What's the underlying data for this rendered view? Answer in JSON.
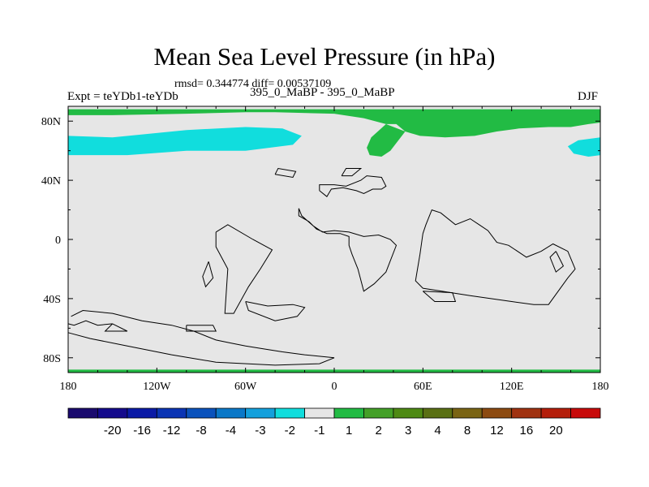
{
  "title": "Mean Sea Level Pressure (in hPa)",
  "stats": "rmsd= 0.344774 diff= 0.00537109",
  "expt_label": "Expt = teYDb1-teYDb",
  "runs_label": "395_0_MaBP - 395_0_MaBP",
  "season_label": "DJF",
  "colors": {
    "background_fill": "#e6e6e6",
    "positive_fill": "#22bb44",
    "negative_fill": "#11dddd",
    "coastline": "#000000"
  },
  "chart_data": {
    "type": "heatmap",
    "title": "Mean Sea Level Pressure (in hPa)",
    "xlim": [
      -180,
      180
    ],
    "ylim": [
      -90,
      90
    ],
    "x_ticks": [
      {
        "value": -180,
        "label": "180"
      },
      {
        "value": -120,
        "label": "120W"
      },
      {
        "value": -60,
        "label": "60W"
      },
      {
        "value": 0,
        "label": "0"
      },
      {
        "value": 60,
        "label": "60E"
      },
      {
        "value": 120,
        "label": "120E"
      },
      {
        "value": 180,
        "label": "180"
      }
    ],
    "y_ticks": [
      {
        "value": 80,
        "label": "80N"
      },
      {
        "value": 40,
        "label": "40N"
      },
      {
        "value": 0,
        "label": "0"
      },
      {
        "value": -40,
        "label": "40S"
      },
      {
        "value": -80,
        "label": "80S"
      }
    ],
    "colorbar": {
      "colors": [
        "#1a0a6e",
        "#140a8c",
        "#0a1aa6",
        "#0a34b4",
        "#0a52bc",
        "#0a78c8",
        "#14a0dc",
        "#11dddd",
        "#e6e6e6",
        "#22bb44",
        "#44a028",
        "#4e8a14",
        "#5a7014",
        "#7a6414",
        "#8c4a10",
        "#a03210",
        "#b41e0a",
        "#c80a0a"
      ],
      "labels": [
        "-20",
        "-16",
        "-12",
        "-8",
        "-4",
        "-3",
        "-2",
        "-1",
        "1",
        "2",
        "3",
        "4",
        "8",
        "12",
        "16",
        "20"
      ]
    },
    "regions": [
      {
        "value_range": "1 to 2",
        "color": "#22bb44",
        "points": [
          [
            -180,
            88
          ],
          [
            -180,
            84
          ],
          [
            -150,
            84
          ],
          [
            -100,
            85
          ],
          [
            -60,
            86
          ],
          [
            -40,
            86
          ],
          [
            0,
            85
          ],
          [
            20,
            82
          ],
          [
            35,
            78
          ],
          [
            42,
            78
          ],
          [
            48,
            73
          ],
          [
            58,
            70
          ],
          [
            75,
            69
          ],
          [
            95,
            70
          ],
          [
            110,
            73
          ],
          [
            125,
            75
          ],
          [
            145,
            76
          ],
          [
            160,
            76
          ],
          [
            172,
            78
          ],
          [
            180,
            79
          ],
          [
            180,
            88
          ]
        ]
      },
      {
        "value_range": "1 to 2",
        "color": "#22bb44",
        "points": [
          [
            35,
            78
          ],
          [
            25,
            69
          ],
          [
            22,
            62
          ],
          [
            24,
            57
          ],
          [
            32,
            56
          ],
          [
            38,
            60
          ],
          [
            48,
            73
          ]
        ]
      },
      {
        "value_range": "1 to 2",
        "color": "#22bb44",
        "points": [
          [
            -180,
            -88
          ],
          [
            180,
            -88
          ],
          [
            180,
            -90
          ],
          [
            -180,
            -90
          ]
        ]
      },
      {
        "value_range": "-2 to -1",
        "color": "#11dddd",
        "points": [
          [
            -180,
            70
          ],
          [
            -150,
            69
          ],
          [
            -100,
            74
          ],
          [
            -60,
            76
          ],
          [
            -35,
            75
          ],
          [
            -22,
            70
          ],
          [
            -28,
            64
          ],
          [
            -60,
            60
          ],
          [
            -100,
            60
          ],
          [
            -140,
            57
          ],
          [
            -180,
            57
          ]
        ]
      },
      {
        "value_range": "-2 to -1",
        "color": "#11dddd",
        "points": [
          [
            180,
            69
          ],
          [
            165,
            67
          ],
          [
            158,
            63
          ],
          [
            162,
            58
          ],
          [
            172,
            56
          ],
          [
            180,
            57
          ]
        ]
      }
    ],
    "coastlines": [
      [
        [
          -10,
          33
        ],
        [
          -10,
          37
        ],
        [
          0,
          37
        ],
        [
          8,
          36
        ],
        [
          18,
          40
        ],
        [
          22,
          43
        ],
        [
          32,
          42
        ],
        [
          35,
          36
        ],
        [
          32,
          34
        ],
        [
          26,
          34
        ],
        [
          20,
          31
        ],
        [
          15,
          33
        ],
        [
          6,
          35
        ],
        [
          -2,
          34
        ],
        [
          -5,
          29
        ],
        [
          -10,
          33
        ]
      ],
      [
        [
          -24,
          21
        ],
        [
          -24,
          16
        ],
        [
          -17,
          12
        ],
        [
          -12,
          7
        ],
        [
          -5,
          4
        ],
        [
          4,
          4
        ],
        [
          10,
          2
        ],
        [
          10,
          -4
        ],
        [
          12,
          -10
        ],
        [
          16,
          -20
        ],
        [
          20,
          -35
        ],
        [
          27,
          -30
        ],
        [
          35,
          -22
        ],
        [
          42,
          -4
        ],
        [
          38,
          0
        ],
        [
          30,
          3
        ],
        [
          20,
          2
        ],
        [
          10,
          5
        ],
        [
          0,
          6
        ],
        [
          -8,
          5
        ],
        [
          -14,
          9
        ],
        [
          -22,
          16
        ],
        [
          -24,
          21
        ]
      ],
      [
        [
          -80,
          5
        ],
        [
          -72,
          10
        ],
        [
          -55,
          0
        ],
        [
          -42,
          -7
        ],
        [
          -50,
          -20
        ],
        [
          -58,
          -32
        ],
        [
          -68,
          -50
        ],
        [
          -74,
          -50
        ],
        [
          -72,
          -20
        ],
        [
          -80,
          -5
        ],
        [
          -80,
          5
        ]
      ],
      [
        [
          -85,
          -15
        ],
        [
          -89,
          -25
        ],
        [
          -87,
          -32
        ],
        [
          -82,
          -26
        ],
        [
          -85,
          -15
        ]
      ],
      [
        [
          60,
          4
        ],
        [
          58,
          -10
        ],
        [
          55,
          -28
        ],
        [
          60,
          -33
        ],
        [
          92,
          -38
        ],
        [
          120,
          -42
        ],
        [
          135,
          -44
        ],
        [
          145,
          -44
        ],
        [
          158,
          -26
        ],
        [
          163,
          -20
        ],
        [
          158,
          -8
        ],
        [
          148,
          -3
        ],
        [
          140,
          -8
        ],
        [
          130,
          -12
        ],
        [
          118,
          -4
        ],
        [
          110,
          -2
        ],
        [
          104,
          6
        ],
        [
          98,
          10
        ],
        [
          92,
          14
        ],
        [
          82,
          10
        ],
        [
          72,
          18
        ],
        [
          66,
          20
        ],
        [
          62,
          10
        ],
        [
          60,
          4
        ]
      ],
      [
        [
          -178,
          -52
        ],
        [
          -170,
          -48
        ],
        [
          -150,
          -50
        ],
        [
          -130,
          -55
        ],
        [
          -110,
          -58
        ],
        [
          -95,
          -62
        ],
        [
          -80,
          -68
        ],
        [
          -70,
          -70
        ],
        [
          -60,
          -72
        ],
        [
          -48,
          -74
        ],
        [
          -35,
          -76
        ],
        [
          -20,
          -78
        ],
        [
          0,
          -80
        ],
        [
          -10,
          -84
        ],
        [
          -40,
          -85
        ],
        [
          -80,
          -83
        ],
        [
          -110,
          -78
        ],
        [
          -140,
          -72
        ],
        [
          -165,
          -67
        ],
        [
          -180,
          -63
        ]
      ],
      [
        [
          -60,
          -42
        ],
        [
          -58,
          -48
        ],
        [
          -40,
          -55
        ],
        [
          -25,
          -52
        ],
        [
          -20,
          -46
        ],
        [
          -28,
          -44
        ],
        [
          -45,
          -45
        ],
        [
          -60,
          -42
        ]
      ],
      [
        [
          -100,
          -58
        ],
        [
          -100,
          -62
        ],
        [
          -80,
          -62
        ],
        [
          -82,
          -58
        ],
        [
          -100,
          -58
        ]
      ],
      [
        [
          -40,
          44
        ],
        [
          -38,
          48
        ],
        [
          -26,
          46
        ],
        [
          -28,
          42
        ],
        [
          -40,
          44
        ]
      ],
      [
        [
          60,
          -35
        ],
        [
          68,
          -42
        ],
        [
          82,
          -42
        ],
        [
          80,
          -36
        ],
        [
          60,
          -35
        ]
      ],
      [
        [
          -150,
          -57
        ],
        [
          -155,
          -62
        ],
        [
          -140,
          -62
        ],
        [
          -150,
          -57
        ]
      ],
      [
        [
          150,
          -8
        ],
        [
          155,
          -18
        ],
        [
          150,
          -22
        ],
        [
          146,
          -12
        ],
        [
          150,
          -8
        ]
      ],
      [
        [
          5,
          43
        ],
        [
          8,
          48
        ],
        [
          18,
          48
        ],
        [
          12,
          43
        ],
        [
          5,
          43
        ]
      ],
      [
        [
          -180,
          -57
        ],
        [
          -176,
          -58
        ],
        [
          -168,
          -55
        ],
        [
          -160,
          -58
        ],
        [
          -150,
          -57
        ]
      ]
    ]
  }
}
